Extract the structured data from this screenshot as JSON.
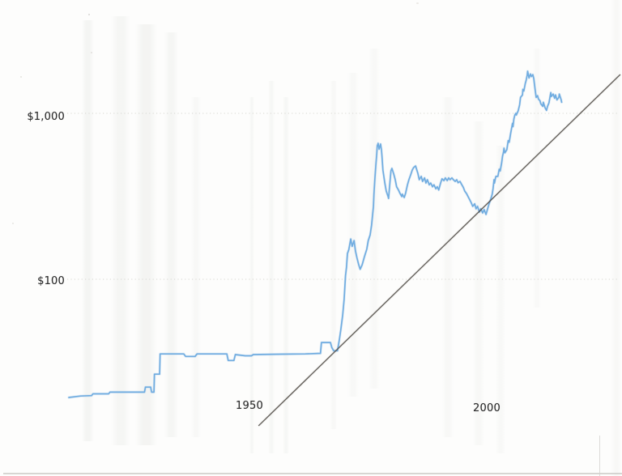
{
  "page": {
    "background_color": "#fdfdfc"
  },
  "chart_data": {
    "type": "line",
    "title": "",
    "xlabel": "",
    "ylabel": "",
    "legend": {
      "visible": false
    },
    "grid": "horizontal-dotted",
    "x_axis": {
      "ticks": [
        {
          "label": "1950",
          "value": 1950
        },
        {
          "label": "2000",
          "value": 2000
        }
      ],
      "range": [
        1915,
        2031.6
      ]
    },
    "y_axis": {
      "scale": "log",
      "unit": "USD",
      "ticks": [
        {
          "label": "$1,000",
          "value": 1000
        },
        {
          "label": "$100",
          "value": 100
        }
      ],
      "gridline_values": [
        1000,
        100
      ],
      "range": [
        10,
        3000
      ]
    },
    "series": [
      {
        "name": "gold-price",
        "color": "#69a9de",
        "points": [
          [
            1915.0,
            19.4
          ],
          [
            1917.5,
            19.8
          ],
          [
            1919.8,
            19.9
          ],
          [
            1920.1,
            20.4
          ],
          [
            1923.4,
            20.4
          ],
          [
            1923.7,
            20.9
          ],
          [
            1931.0,
            20.9
          ],
          [
            1931.2,
            22.4
          ],
          [
            1932.3,
            22.4
          ],
          [
            1932.5,
            20.9
          ],
          [
            1933.0,
            20.9
          ],
          [
            1933.1,
            26.8
          ],
          [
            1934.2,
            26.8
          ],
          [
            1934.3,
            35.5
          ],
          [
            1939.3,
            35.5
          ],
          [
            1939.7,
            34.3
          ],
          [
            1941.7,
            34.3
          ],
          [
            1942.1,
            35.5
          ],
          [
            1948.4,
            35.5
          ],
          [
            1948.7,
            32.4
          ],
          [
            1949.9,
            32.4
          ],
          [
            1950.2,
            35.2
          ],
          [
            1952.3,
            34.6
          ],
          [
            1953.6,
            34.6
          ],
          [
            1954.0,
            35.2
          ],
          [
            1960.0,
            35.4
          ],
          [
            1965.0,
            35.5
          ],
          [
            1968.2,
            35.8
          ],
          [
            1968.4,
            41.6
          ],
          [
            1970.3,
            41.6
          ],
          [
            1970.6,
            38.8
          ],
          [
            1971.0,
            37.1
          ],
          [
            1971.8,
            37.1
          ],
          [
            1972.2,
            43.2
          ],
          [
            1972.5,
            49.6
          ],
          [
            1972.9,
            60.7
          ],
          [
            1973.2,
            75.6
          ],
          [
            1973.5,
            105
          ],
          [
            1973.7,
            118
          ],
          [
            1973.9,
            143
          ],
          [
            1974.2,
            151
          ],
          [
            1974.6,
            175
          ],
          [
            1974.9,
            158
          ],
          [
            1975.3,
            171
          ],
          [
            1975.6,
            148
          ],
          [
            1975.9,
            135
          ],
          [
            1976.3,
            122
          ],
          [
            1976.6,
            115
          ],
          [
            1977.0,
            122
          ],
          [
            1977.5,
            137
          ],
          [
            1978.0,
            152
          ],
          [
            1978.3,
            171
          ],
          [
            1978.7,
            185
          ],
          [
            1979.0,
            212
          ],
          [
            1979.4,
            275
          ],
          [
            1979.5,
            325
          ],
          [
            1979.7,
            398
          ],
          [
            1979.9,
            482
          ],
          [
            1980.1,
            571
          ],
          [
            1980.2,
            638
          ],
          [
            1980.4,
            660
          ],
          [
            1980.6,
            608
          ],
          [
            1980.9,
            653
          ],
          [
            1981.1,
            601
          ],
          [
            1981.2,
            553
          ],
          [
            1981.4,
            455
          ],
          [
            1981.8,
            382
          ],
          [
            1982.1,
            340
          ],
          [
            1982.5,
            315
          ],
          [
            1982.6,
            307
          ],
          [
            1982.8,
            361
          ],
          [
            1983.1,
            450
          ],
          [
            1983.3,
            466
          ],
          [
            1983.7,
            430
          ],
          [
            1984.0,
            398
          ],
          [
            1984.3,
            361
          ],
          [
            1984.7,
            345
          ],
          [
            1985.0,
            330
          ],
          [
            1985.4,
            315
          ],
          [
            1985.5,
            326
          ],
          [
            1985.9,
            311
          ],
          [
            1986.2,
            330
          ],
          [
            1986.6,
            371
          ],
          [
            1986.9,
            398
          ],
          [
            1987.3,
            428
          ],
          [
            1987.6,
            455
          ],
          [
            1987.9,
            471
          ],
          [
            1988.3,
            482
          ],
          [
            1988.8,
            434
          ],
          [
            1989.1,
            398
          ],
          [
            1989.5,
            417
          ],
          [
            1989.8,
            389
          ],
          [
            1990.2,
            408
          ],
          [
            1990.5,
            380
          ],
          [
            1990.8,
            398
          ],
          [
            1991.2,
            371
          ],
          [
            1991.5,
            380
          ],
          [
            1991.9,
            361
          ],
          [
            1992.2,
            371
          ],
          [
            1992.6,
            351
          ],
          [
            1992.9,
            361
          ],
          [
            1993.2,
            345
          ],
          [
            1993.6,
            380
          ],
          [
            1993.9,
            403
          ],
          [
            1994.3,
            393
          ],
          [
            1994.6,
            408
          ],
          [
            1995.0,
            393
          ],
          [
            1995.3,
            408
          ],
          [
            1995.6,
            398
          ],
          [
            1996.0,
            408
          ],
          [
            1996.3,
            398
          ],
          [
            1996.7,
            389
          ],
          [
            1997.0,
            398
          ],
          [
            1997.3,
            382
          ],
          [
            1997.7,
            389
          ],
          [
            1998.0,
            375
          ],
          [
            1998.4,
            358
          ],
          [
            1998.7,
            340
          ],
          [
            1999.1,
            328
          ],
          [
            1999.4,
            315
          ],
          [
            1999.7,
            304
          ],
          [
            2000.1,
            288
          ],
          [
            2000.4,
            275
          ],
          [
            2000.8,
            285
          ],
          [
            2001.1,
            266
          ],
          [
            2001.4,
            275
          ],
          [
            2001.8,
            254
          ],
          [
            2002.1,
            266
          ],
          [
            2002.5,
            251
          ],
          [
            2002.8,
            263
          ],
          [
            2003.2,
            246
          ],
          [
            2003.5,
            263
          ],
          [
            2003.8,
            282
          ],
          [
            2004.2,
            304
          ],
          [
            2004.5,
            325
          ],
          [
            2004.7,
            352
          ],
          [
            2004.9,
            398
          ],
          [
            2005.0,
            380
          ],
          [
            2005.2,
            408
          ],
          [
            2005.3,
            417
          ],
          [
            2005.7,
            417
          ],
          [
            2006.0,
            460
          ],
          [
            2006.2,
            450
          ],
          [
            2006.5,
            503
          ],
          [
            2006.7,
            552
          ],
          [
            2006.9,
            584
          ],
          [
            2007.0,
            617
          ],
          [
            2007.2,
            578
          ],
          [
            2007.6,
            604
          ],
          [
            2007.9,
            685
          ],
          [
            2008.1,
            670
          ],
          [
            2008.4,
            757
          ],
          [
            2008.8,
            870
          ],
          [
            2008.9,
            832
          ],
          [
            2009.1,
            925
          ],
          [
            2009.3,
            977
          ],
          [
            2009.5,
            1000
          ],
          [
            2009.6,
            977
          ],
          [
            2010.0,
            1035
          ],
          [
            2010.3,
            1127
          ],
          [
            2010.5,
            1247
          ],
          [
            2010.9,
            1290
          ],
          [
            2011.0,
            1394
          ],
          [
            2011.2,
            1364
          ],
          [
            2011.5,
            1515
          ],
          [
            2011.7,
            1584
          ],
          [
            2011.9,
            1696
          ],
          [
            2012.0,
            1794
          ],
          [
            2012.3,
            1633
          ],
          [
            2012.6,
            1727
          ],
          [
            2012.8,
            1665
          ],
          [
            2013.1,
            1711
          ],
          [
            2013.3,
            1618
          ],
          [
            2013.4,
            1527
          ],
          [
            2013.6,
            1384
          ],
          [
            2013.8,
            1247
          ],
          [
            2014.1,
            1278
          ],
          [
            2014.3,
            1219
          ],
          [
            2014.6,
            1191
          ],
          [
            2014.8,
            1141
          ],
          [
            2015.2,
            1102
          ],
          [
            2015.3,
            1167
          ],
          [
            2015.7,
            1078
          ],
          [
            2016.0,
            1043
          ],
          [
            2016.2,
            1102
          ],
          [
            2016.5,
            1154
          ],
          [
            2016.9,
            1334
          ],
          [
            2017.0,
            1262
          ],
          [
            2017.4,
            1306
          ],
          [
            2017.7,
            1234
          ],
          [
            2017.9,
            1290
          ],
          [
            2018.2,
            1205
          ],
          [
            2018.6,
            1247
          ],
          [
            2018.7,
            1306
          ],
          [
            2019.1,
            1205
          ],
          [
            2019.2,
            1167
          ]
        ]
      }
    ],
    "annotations": [
      {
        "name": "trend-line",
        "type": "straight-line",
        "color": "#55514b",
        "from": [
          1955.1,
          13.1
        ],
        "to": [
          2031.6,
          1714
        ]
      }
    ]
  }
}
